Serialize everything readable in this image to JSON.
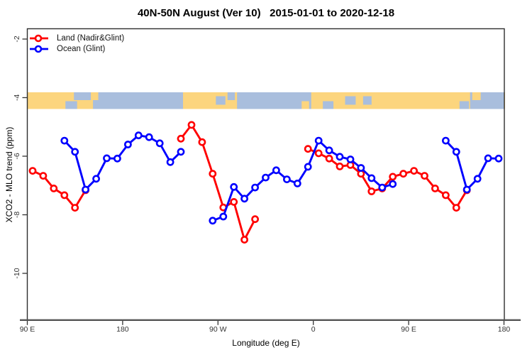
{
  "title": "40N-50N August (Ver 10)   2015-01-01 to 2020-12-18",
  "axes": {
    "x_label": "Longitude (deg E)",
    "y_label": "XCO2 - MLO trend (ppm)"
  },
  "legend": {
    "items": [
      {
        "label": "Land (Nadir&Glint)",
        "color": "#ff0000"
      },
      {
        "label": "Ocean (Glint)",
        "color": "#0000ff"
      }
    ]
  },
  "chart_data": {
    "type": "line",
    "title": "40N-50N August (Ver 10) 2015-01-01 to 2020-12-18",
    "x_axis": {
      "label": "Longitude (deg E)",
      "note": "axis spans 450 deg: 90E -> 180 -> 90W -> 0 -> 90E -> 180 (deg = degrees east of 90E along axis)",
      "range_deg": [
        0,
        450
      ],
      "ticks": [
        {
          "deg": 0,
          "label": "90 E"
        },
        {
          "deg": 90,
          "label": "180"
        },
        {
          "deg": 180,
          "label": "90 W"
        },
        {
          "deg": 270,
          "label": "0"
        },
        {
          "deg": 360,
          "label": "90 E"
        },
        {
          "deg": 450,
          "label": "180"
        }
      ]
    },
    "y_axis": {
      "label": "XCO2 - MLO trend (ppm)",
      "range": [
        -11.6,
        -1.65
      ],
      "ticks": [
        {
          "value": -2,
          "label": "-2"
        },
        {
          "value": -4,
          "label": "-4"
        },
        {
          "value": -6,
          "label": "-6"
        },
        {
          "value": -8,
          "label": "-8"
        },
        {
          "value": -10,
          "label": "-10"
        }
      ]
    },
    "series": [
      {
        "name": "Land (Nadir&Glint)",
        "color": "#ff0000",
        "marker": "open-circle",
        "segments": [
          [
            [
              5,
              -6.5
            ],
            [
              15,
              -6.67
            ],
            [
              25,
              -7.1
            ],
            [
              35,
              -7.33
            ],
            [
              45,
              -7.76
            ],
            [
              55,
              -7.16
            ]
          ],
          [
            [
              145,
              -5.4
            ],
            [
              155,
              -4.93
            ],
            [
              165,
              -5.52
            ],
            [
              175,
              -6.6
            ],
            [
              185,
              -7.75
            ],
            [
              195,
              -7.56
            ],
            [
              205,
              -8.85
            ],
            [
              215,
              -8.15
            ]
          ],
          [
            [
              265,
              -5.75
            ],
            [
              275,
              -5.9
            ],
            [
              285,
              -6.08
            ],
            [
              295,
              -6.35
            ],
            [
              305,
              -6.3
            ],
            [
              315,
              -6.6
            ],
            [
              325,
              -7.2
            ],
            [
              335,
              -7.1
            ],
            [
              345,
              -6.7
            ],
            [
              355,
              -6.6
            ],
            [
              365,
              -6.5
            ],
            [
              375,
              -6.67
            ],
            [
              385,
              -7.1
            ],
            [
              395,
              -7.33
            ],
            [
              405,
              -7.76
            ],
            [
              415,
              -7.16
            ]
          ]
        ]
      },
      {
        "name": "Ocean (Glint)",
        "color": "#0000ff",
        "marker": "open-circle",
        "segments": [
          [
            [
              35,
              -5.47
            ],
            [
              45,
              -5.85
            ],
            [
              55,
              -7.14
            ],
            [
              65,
              -6.77
            ],
            [
              75,
              -6.07
            ],
            [
              85,
              -6.08
            ],
            [
              95,
              -5.6
            ],
            [
              105,
              -5.29
            ],
            [
              115,
              -5.35
            ],
            [
              125,
              -5.56
            ],
            [
              135,
              -6.2
            ],
            [
              145,
              -5.85
            ]
          ],
          [
            [
              175,
              -8.2
            ],
            [
              185,
              -8.06
            ],
            [
              195,
              -7.05
            ],
            [
              205,
              -7.45
            ],
            [
              215,
              -7.07
            ],
            [
              225,
              -6.73
            ],
            [
              235,
              -6.48
            ],
            [
              245,
              -6.79
            ],
            [
              255,
              -6.93
            ],
            [
              265,
              -6.36
            ],
            [
              275,
              -5.47
            ],
            [
              285,
              -5.8
            ],
            [
              295,
              -6.02
            ],
            [
              305,
              -6.11
            ],
            [
              315,
              -6.4
            ],
            [
              325,
              -6.75
            ],
            [
              335,
              -7.07
            ],
            [
              345,
              -6.95
            ]
          ],
          [
            [
              395,
              -5.47
            ],
            [
              405,
              -5.85
            ],
            [
              415,
              -7.14
            ],
            [
              425,
              -6.77
            ],
            [
              435,
              -6.07
            ],
            [
              445,
              -6.08
            ]
          ]
        ]
      }
    ],
    "map_strip": {
      "description": "world-map band for 40N-50N drawn across the plot near y=-4",
      "center_ppm": -4,
      "land_color": "#fcd57e",
      "ocean_color": "#a9bedd",
      "base": "land",
      "ocean_segments": [
        {
          "from_deg": 62,
          "to_deg": 147,
          "band": "full"
        },
        {
          "from_deg": 198,
          "to_deg": 268,
          "band": "full"
        },
        {
          "from_deg": 418,
          "to_deg": 451,
          "band": "full"
        },
        {
          "from_deg": 36,
          "to_deg": 47,
          "band": "bottom"
        },
        {
          "from_deg": 44,
          "to_deg": 61,
          "band": "top"
        },
        {
          "from_deg": 178,
          "to_deg": 187,
          "band": "mid"
        },
        {
          "from_deg": 189,
          "to_deg": 196,
          "band": "top"
        },
        {
          "from_deg": 279,
          "to_deg": 289,
          "band": "bottom"
        },
        {
          "from_deg": 300,
          "to_deg": 310,
          "band": "mid"
        },
        {
          "from_deg": 317,
          "to_deg": 325,
          "band": "mid"
        },
        {
          "from_deg": 408,
          "to_deg": 417,
          "band": "bottom"
        }
      ],
      "land_patches": [
        {
          "from_deg": 60,
          "to_deg": 67,
          "band": "top"
        },
        {
          "from_deg": 259,
          "to_deg": 266,
          "band": "bottom"
        },
        {
          "from_deg": 420,
          "to_deg": 428,
          "band": "top"
        }
      ]
    },
    "style": {
      "border_color": "#2e2e2e",
      "axis_line_color": "#555555",
      "tick_color": "#333333"
    }
  }
}
